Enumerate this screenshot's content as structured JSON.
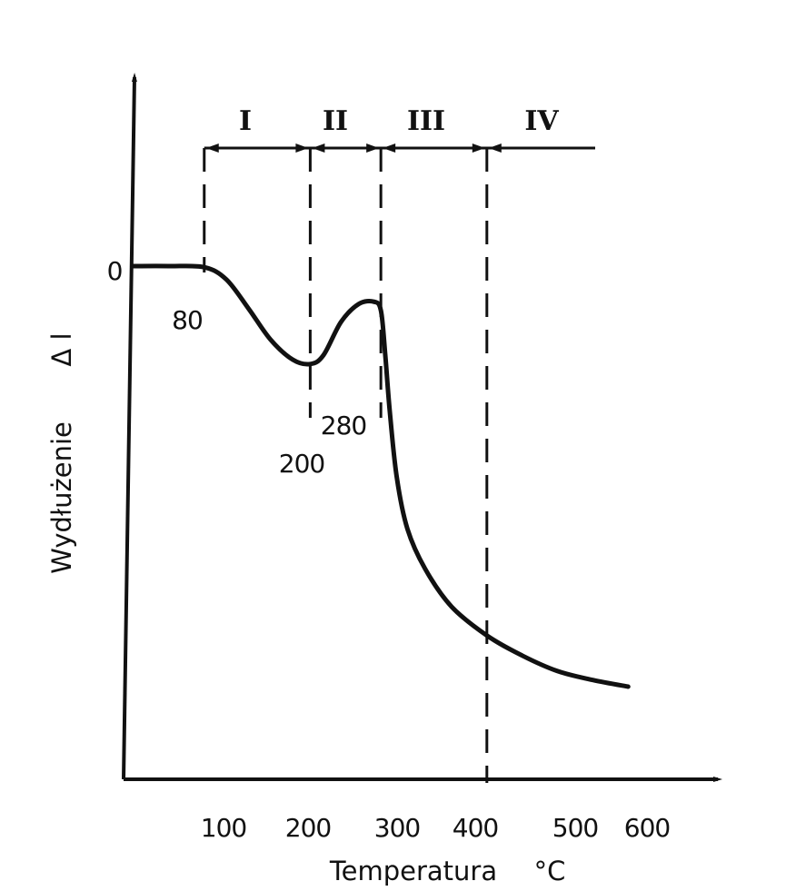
{
  "chart_data": {
    "type": "line",
    "title": "",
    "xlabel": "Temperatura",
    "xunit": "°C",
    "ylabel": "Wydłużenie",
    "ysymbol": "Δ l",
    "x_ticks": [
      "100",
      "200",
      "300",
      "400",
      "500",
      "600"
    ],
    "y_ticks": [
      "0"
    ],
    "xlim": [
      0,
      600
    ],
    "grid": false,
    "series": [
      {
        "x": [
          0,
          40,
          80,
          105,
          130,
          155,
          180,
          200,
          215,
          235,
          255,
          272,
          280,
          285,
          290,
          298,
          310,
          330,
          360,
          400,
          440,
          480,
          520,
          560
        ],
        "y": [
          0,
          0,
          -0.05,
          -0.6,
          -1.9,
          -3.3,
          -4.2,
          -4.4,
          -4.0,
          -2.5,
          -1.7,
          -1.6,
          -2.0,
          -4.0,
          -6.5,
          -9.5,
          -11.8,
          -13.6,
          -15.3,
          -16.6,
          -17.5,
          -18.2,
          -18.6,
          -18.9
        ]
      }
    ],
    "point_labels": [
      "80",
      "200",
      "280"
    ],
    "regions": [
      {
        "label": "I",
        "from": 80,
        "to": 200
      },
      {
        "label": "II",
        "from": 200,
        "to": 280
      },
      {
        "label": "III",
        "from": 280,
        "to": 400
      },
      {
        "label": "IV",
        "from": 400,
        "to": 520
      }
    ]
  }
}
